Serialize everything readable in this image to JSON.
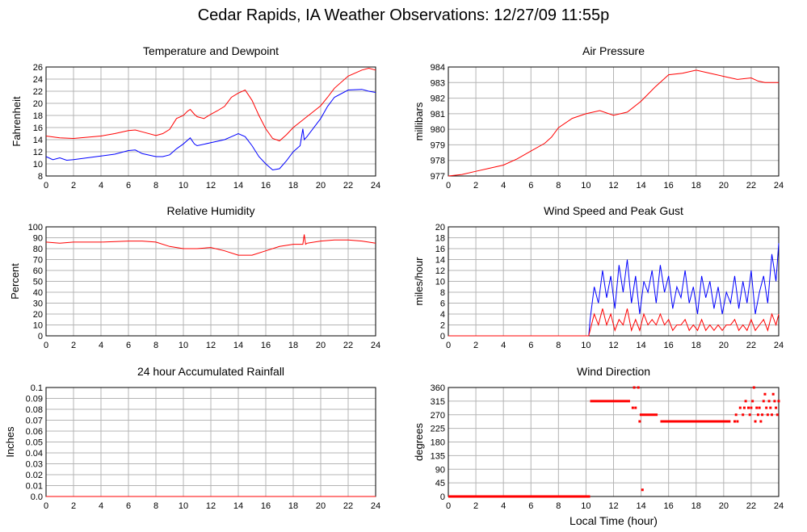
{
  "page": {
    "title": "Cedar Rapids, IA Weather Observations: 12/27/09 11:55p"
  },
  "colors": {
    "red": "#ff0000",
    "blue": "#0000ff",
    "grid": "#b4b4b4",
    "frame": "#000000"
  },
  "x_axis_label": "Local Time (hour)",
  "chart_data": [
    {
      "id": "temp",
      "type": "line",
      "title": "Temperature and Dewpoint",
      "xlabel": "",
      "ylabel": "Fahrenheit",
      "xlim": [
        0,
        24
      ],
      "ylim": [
        8,
        26
      ],
      "xticks": [
        0,
        2,
        4,
        6,
        8,
        10,
        12,
        14,
        16,
        18,
        20,
        22,
        24
      ],
      "yticks": [
        8,
        10,
        12,
        14,
        16,
        18,
        20,
        22,
        24,
        26
      ],
      "grid": true,
      "series": [
        {
          "color": "#ff0000",
          "x": [
            0,
            1,
            2,
            3,
            4,
            5,
            6,
            6.5,
            7,
            8,
            8.5,
            9,
            9.5,
            10,
            10.3,
            10.5,
            10.8,
            11,
            11.5,
            12,
            12.5,
            13,
            13.5,
            14,
            14.5,
            15,
            15.5,
            16,
            16.5,
            17,
            17.5,
            18,
            19,
            20,
            20.5,
            21,
            22,
            23,
            23.5,
            24
          ],
          "y": [
            14.6,
            14.3,
            14.2,
            14.4,
            14.6,
            15,
            15.5,
            15.6,
            15.3,
            14.7,
            15,
            15.7,
            17.5,
            18,
            18.7,
            19,
            18.2,
            17.8,
            17.5,
            18.2,
            18.8,
            19.5,
            21,
            21.7,
            22.2,
            20.5,
            18,
            15.8,
            14.2,
            13.8,
            14.8,
            16,
            17.8,
            19.6,
            21,
            22.5,
            24.5,
            25.5,
            25.8,
            25.5
          ]
        },
        {
          "color": "#0000ff",
          "x": [
            0,
            0.5,
            1,
            1.5,
            2,
            3,
            4,
            5,
            6,
            6.5,
            7,
            8,
            8.5,
            9,
            9.5,
            10,
            10.5,
            10.8,
            11,
            12,
            13,
            13.5,
            14,
            14.5,
            15,
            15.5,
            16,
            16.5,
            17,
            17.5,
            18,
            18.5,
            18.7,
            18.8,
            19,
            20,
            20.5,
            21,
            22,
            23,
            23.5,
            24
          ],
          "y": [
            11.2,
            10.7,
            11,
            10.6,
            10.7,
            11,
            11.3,
            11.6,
            12.2,
            12.3,
            11.7,
            11.2,
            11.2,
            11.5,
            12.5,
            13.3,
            14.3,
            13.3,
            13,
            13.5,
            14,
            14.5,
            15,
            14.5,
            13,
            11.2,
            10,
            9,
            9.2,
            10.5,
            12,
            13,
            15.8,
            14,
            14.5,
            17.5,
            19.5,
            21,
            22.2,
            22.3,
            22,
            21.8
          ]
        }
      ]
    },
    {
      "id": "pressure",
      "type": "line",
      "title": "Air Pressure",
      "xlabel": "",
      "ylabel": "millibars",
      "xlim": [
        0,
        24
      ],
      "ylim": [
        977,
        984
      ],
      "xticks": [
        0,
        2,
        4,
        6,
        8,
        10,
        12,
        14,
        16,
        18,
        20,
        22,
        24
      ],
      "yticks": [
        977,
        978,
        979,
        980,
        981,
        982,
        983,
        984
      ],
      "grid": true,
      "series": [
        {
          "color": "#ff0000",
          "x": [
            0,
            1,
            2,
            3,
            4,
            5,
            6,
            7,
            7.5,
            8,
            9,
            10,
            11,
            12,
            13,
            14,
            15,
            16,
            17,
            18,
            19,
            20,
            21,
            22,
            22.5,
            23,
            24
          ],
          "y": [
            977,
            977.1,
            977.3,
            977.5,
            977.7,
            978.1,
            978.6,
            979.1,
            979.5,
            980.1,
            980.7,
            981,
            981.2,
            980.9,
            981.1,
            981.8,
            982.7,
            983.5,
            983.6,
            983.8,
            983.6,
            983.4,
            983.2,
            983.3,
            983.1,
            983,
            983
          ]
        }
      ]
    },
    {
      "id": "humidity",
      "type": "line",
      "title": "Relative Humidity",
      "xlabel": "",
      "ylabel": "Percent",
      "xlim": [
        0,
        24
      ],
      "ylim": [
        0,
        100
      ],
      "xticks": [
        0,
        2,
        4,
        6,
        8,
        10,
        12,
        14,
        16,
        18,
        20,
        22,
        24
      ],
      "yticks": [
        0,
        10,
        20,
        30,
        40,
        50,
        60,
        70,
        80,
        90,
        100
      ],
      "grid": true,
      "series": [
        {
          "color": "#ff0000",
          "x": [
            0,
            1,
            2,
            4,
            6,
            7,
            8,
            9,
            10,
            11,
            12,
            13,
            14,
            15,
            16,
            17,
            18,
            18.7,
            18.8,
            18.9,
            19,
            20,
            21,
            22,
            23,
            24
          ],
          "y": [
            86,
            85,
            86,
            86,
            87,
            87,
            86,
            82,
            80,
            80,
            81,
            78,
            74,
            74,
            78,
            82,
            84,
            84,
            93,
            84,
            85,
            87,
            88,
            88,
            87,
            85
          ]
        }
      ]
    },
    {
      "id": "wind",
      "type": "line",
      "title": "Wind Speed and Peak Gust",
      "xlabel": "",
      "ylabel": "miles/hour",
      "xlim": [
        0,
        24
      ],
      "ylim": [
        0,
        20
      ],
      "xticks": [
        0,
        2,
        4,
        6,
        8,
        10,
        12,
        14,
        16,
        18,
        20,
        22,
        24
      ],
      "yticks": [
        0,
        2,
        4,
        6,
        8,
        10,
        12,
        14,
        16,
        18,
        20
      ],
      "grid": true,
      "series": [
        {
          "color": "#0000ff",
          "x": [
            0,
            10.2,
            10.3,
            10.6,
            10.9,
            11.2,
            11.5,
            11.8,
            12.1,
            12.4,
            12.7,
            13,
            13.3,
            13.6,
            13.9,
            14.2,
            14.5,
            14.8,
            15.1,
            15.4,
            15.7,
            16,
            16.3,
            16.6,
            16.9,
            17.2,
            17.5,
            17.8,
            18.1,
            18.4,
            18.7,
            19,
            19.3,
            19.6,
            19.9,
            20.2,
            20.5,
            20.8,
            21.1,
            21.4,
            21.7,
            22,
            22.3,
            22.6,
            22.9,
            23.2,
            23.5,
            23.8,
            24
          ],
          "y": [
            0,
            0,
            3,
            9,
            6,
            12,
            7,
            11,
            5,
            13,
            8,
            14,
            6,
            11,
            4,
            10,
            8,
            12,
            6,
            13,
            8,
            11,
            5,
            9,
            7,
            12,
            6,
            9,
            4,
            11,
            7,
            10,
            5,
            9,
            4,
            8,
            6,
            11,
            5,
            10,
            6,
            12,
            4,
            8,
            11,
            6,
            15,
            10,
            17
          ]
        },
        {
          "color": "#ff0000",
          "x": [
            0,
            10.2,
            10.3,
            10.6,
            10.9,
            11.2,
            11.5,
            11.8,
            12.1,
            12.4,
            12.7,
            13,
            13.3,
            13.6,
            13.9,
            14.2,
            14.5,
            14.8,
            15.1,
            15.4,
            15.7,
            16,
            16.3,
            16.6,
            16.9,
            17.2,
            17.5,
            17.8,
            18.1,
            18.4,
            18.7,
            19,
            19.3,
            19.6,
            19.9,
            20.2,
            20.5,
            20.8,
            21.1,
            21.4,
            21.7,
            22,
            22.3,
            22.6,
            22.9,
            23.2,
            23.5,
            23.8,
            24
          ],
          "y": [
            0,
            0,
            1,
            4,
            2,
            5,
            2,
            4,
            1,
            3,
            2,
            5,
            1,
            3,
            1,
            4,
            2,
            3,
            2,
            4,
            2,
            3,
            1,
            2,
            2,
            3,
            1,
            2,
            1,
            3,
            1,
            2,
            1,
            2,
            1,
            2,
            2,
            3,
            1,
            2,
            1,
            3,
            1,
            2,
            3,
            1,
            4,
            2,
            4
          ]
        }
      ]
    },
    {
      "id": "rain",
      "type": "line",
      "title": "24 hour Accumulated Rainfall",
      "xlabel": "",
      "ylabel": "Inches",
      "xlim": [
        0,
        24
      ],
      "ylim": [
        0,
        0.1
      ],
      "xticks": [
        0,
        2,
        4,
        6,
        8,
        10,
        12,
        14,
        16,
        18,
        20,
        22,
        24
      ],
      "yticks": [
        0.0,
        0.01,
        0.02,
        0.03,
        0.04,
        0.05,
        0.06,
        0.07,
        0.08,
        0.09,
        0.1
      ],
      "ytick_labels": [
        "0.0",
        "0.01",
        "0.02",
        "0.03",
        "0.04",
        "0.05",
        "0.06",
        "0.07",
        "0.08",
        "0.09",
        "0.1"
      ],
      "grid": true,
      "series": [
        {
          "color": "#ff0000",
          "x": [
            0,
            24
          ],
          "y": [
            0,
            0
          ]
        }
      ]
    },
    {
      "id": "direction",
      "type": "scatter",
      "title": "Wind Direction",
      "xlabel": "Local Time (hour)",
      "ylabel": "degrees",
      "xlim": [
        0,
        24
      ],
      "ylim": [
        0,
        360
      ],
      "xticks": [
        0,
        2,
        4,
        6,
        8,
        10,
        12,
        14,
        16,
        18,
        20,
        22,
        24
      ],
      "yticks": [
        0,
        45,
        90,
        135,
        180,
        225,
        270,
        315,
        360
      ],
      "grid": true,
      "segments": [
        {
          "x0": 0,
          "x1": 10.3,
          "y": 0
        },
        {
          "x0": 10.3,
          "x1": 13.2,
          "y": 315
        },
        {
          "x0": 13.9,
          "x1": 15.2,
          "y": 270
        },
        {
          "x0": 15.4,
          "x1": 20.5,
          "y": 248
        }
      ],
      "points": [
        [
          13.4,
          293
        ],
        [
          13.6,
          293
        ],
        [
          13.5,
          360
        ],
        [
          13.8,
          360
        ],
        [
          13.9,
          248
        ],
        [
          14.1,
          22
        ],
        [
          20.8,
          248
        ],
        [
          21.0,
          248
        ],
        [
          20.9,
          270
        ],
        [
          21.2,
          293
        ],
        [
          21.4,
          270
        ],
        [
          21.5,
          293
        ],
        [
          21.6,
          315
        ],
        [
          21.8,
          293
        ],
        [
          21.9,
          270
        ],
        [
          22.0,
          293
        ],
        [
          22.1,
          315
        ],
        [
          22.2,
          360
        ],
        [
          22.3,
          248
        ],
        [
          22.4,
          293
        ],
        [
          22.5,
          270
        ],
        [
          22.6,
          293
        ],
        [
          22.7,
          248
        ],
        [
          22.8,
          270
        ],
        [
          22.9,
          315
        ],
        [
          23.0,
          338
        ],
        [
          23.1,
          293
        ],
        [
          23.2,
          270
        ],
        [
          23.3,
          315
        ],
        [
          23.4,
          293
        ],
        [
          23.5,
          270
        ],
        [
          23.6,
          338
        ],
        [
          23.7,
          315
        ],
        [
          23.8,
          293
        ],
        [
          23.9,
          270
        ],
        [
          24.0,
          315
        ]
      ],
      "color": "#ff0000"
    }
  ]
}
